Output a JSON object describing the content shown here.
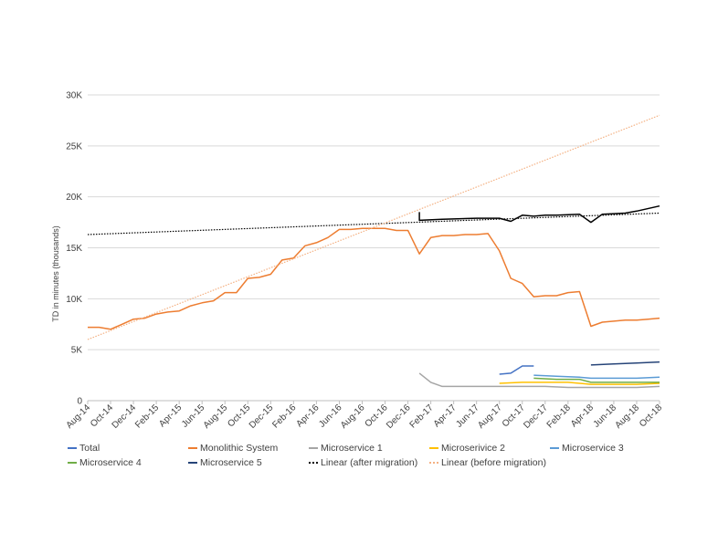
{
  "chart_data": {
    "type": "line",
    "title": "",
    "xlabel": "",
    "ylabel": "TD in minutes  (thousands)",
    "ylim": [
      0,
      30000
    ],
    "y_ticks": [
      {
        "value": 0,
        "label": "0"
      },
      {
        "value": 5000,
        "label": "5K"
      },
      {
        "value": 10000,
        "label": "10K"
      },
      {
        "value": 15000,
        "label": "15K"
      },
      {
        "value": 20000,
        "label": "20K"
      },
      {
        "value": 25000,
        "label": "25K"
      },
      {
        "value": 30000,
        "label": "30K"
      }
    ],
    "x_ticks": [
      "Aug-14",
      "Oct-14",
      "Dec-14",
      "Feb-15",
      "Apr-15",
      "Jun-15",
      "Aug-15",
      "Oct-15",
      "Dec-15",
      "Feb-16",
      "Apr-16",
      "Jun-16",
      "Aug-16",
      "Oct-16",
      "Dec-16",
      "Feb-17",
      "Apr-17",
      "Jun-17",
      "Aug-17",
      "Oct-17",
      "Dec-17",
      "Feb-18",
      "Apr-18",
      "Jun-18",
      "Aug-18",
      "Oct-18"
    ],
    "grid": "horizontal",
    "legend_position": "bottom",
    "series": [
      {
        "name": "Total",
        "color": "#4472c4",
        "dash": "solid",
        "points": [
          [
            "Aug-17",
            2600
          ],
          [
            "Sep-17",
            2700
          ],
          [
            "Oct-17",
            3400
          ],
          [
            "Nov-17",
            3400
          ]
        ]
      },
      {
        "name": "Monolithic System",
        "color": "#ed7d31",
        "dash": "solid",
        "points": [
          [
            "Aug-14",
            7200
          ],
          [
            "Sep-14",
            7200
          ],
          [
            "Oct-14",
            7000
          ],
          [
            "Nov-14",
            7500
          ],
          [
            "Dec-14",
            8000
          ],
          [
            "Jan-15",
            8100
          ],
          [
            "Feb-15",
            8500
          ],
          [
            "Mar-15",
            8700
          ],
          [
            "Apr-15",
            8800
          ],
          [
            "May-15",
            9300
          ],
          [
            "Jun-15",
            9600
          ],
          [
            "Jul-15",
            9800
          ],
          [
            "Aug-15",
            10600
          ],
          [
            "Sep-15",
            10600
          ],
          [
            "Oct-15",
            12000
          ],
          [
            "Nov-15",
            12100
          ],
          [
            "Dec-15",
            12400
          ],
          [
            "Jan-16",
            13800
          ],
          [
            "Feb-16",
            14000
          ],
          [
            "Mar-16",
            15200
          ],
          [
            "Apr-16",
            15500
          ],
          [
            "May-16",
            16000
          ],
          [
            "Jun-16",
            16800
          ],
          [
            "Jul-16",
            16800
          ],
          [
            "Aug-16",
            16900
          ],
          [
            "Sep-16",
            16900
          ],
          [
            "Oct-16",
            16900
          ],
          [
            "Nov-16",
            16700
          ],
          [
            "Dec-16",
            16700
          ],
          [
            "Jan-17",
            14400
          ],
          [
            "Feb-17",
            16000
          ],
          [
            "Mar-17",
            16200
          ],
          [
            "Apr-17",
            16200
          ],
          [
            "May-17",
            16300
          ],
          [
            "Jun-17",
            16300
          ],
          [
            "Jul-17",
            16400
          ],
          [
            "Aug-17",
            14700
          ],
          [
            "Sep-17",
            12000
          ],
          [
            "Oct-17",
            11500
          ],
          [
            "Nov-17",
            10200
          ],
          [
            "Dec-17",
            10300
          ],
          [
            "Jan-18",
            10300
          ],
          [
            "Feb-18",
            10600
          ],
          [
            "Mar-18",
            10700
          ],
          [
            "Apr-18",
            7300
          ],
          [
            "May-18",
            7700
          ],
          [
            "Jun-18",
            7800
          ],
          [
            "Jul-18",
            7900
          ],
          [
            "Aug-18",
            7900
          ],
          [
            "Sep-18",
            8000
          ],
          [
            "Oct-18",
            8100
          ]
        ]
      },
      {
        "name": "Microservice 1",
        "color": "#a5a5a5",
        "dash": "solid",
        "points": [
          [
            "Jan-17",
            2700
          ],
          [
            "Feb-17",
            1800
          ],
          [
            "Mar-17",
            1400
          ],
          [
            "Jun-17",
            1400
          ],
          [
            "Aug-17",
            1400
          ],
          [
            "Oct-17",
            1400
          ],
          [
            "Dec-17",
            1400
          ],
          [
            "Feb-18",
            1300
          ],
          [
            "Apr-18",
            1300
          ],
          [
            "Jun-18",
            1300
          ],
          [
            "Aug-18",
            1300
          ],
          [
            "Oct-18",
            1400
          ]
        ]
      },
      {
        "name": "Microserivice 2",
        "color": "#ffc000",
        "dash": "solid",
        "points": [
          [
            "Aug-17",
            1700
          ],
          [
            "Oct-17",
            1800
          ],
          [
            "Dec-17",
            1800
          ],
          [
            "Feb-18",
            1800
          ],
          [
            "Apr-18",
            1600
          ],
          [
            "Jun-18",
            1600
          ],
          [
            "Aug-18",
            1600
          ],
          [
            "Oct-18",
            1700
          ]
        ]
      },
      {
        "name": "Microservice 3",
        "color": "#5b9bd5",
        "dash": "solid",
        "points": [
          [
            "Nov-17",
            2500
          ],
          [
            "Jan-18",
            2400
          ],
          [
            "Mar-18",
            2300
          ],
          [
            "Apr-18",
            2200
          ],
          [
            "Jun-18",
            2200
          ],
          [
            "Aug-18",
            2200
          ],
          [
            "Oct-18",
            2300
          ]
        ]
      },
      {
        "name": "Microservice 4",
        "color": "#70ad47",
        "dash": "solid",
        "points": [
          [
            "Nov-17",
            2200
          ],
          [
            "Jan-18",
            2100
          ],
          [
            "Mar-18",
            2100
          ],
          [
            "Apr-18",
            1800
          ],
          [
            "Jun-18",
            1800
          ],
          [
            "Aug-18",
            1800
          ],
          [
            "Oct-18",
            1800
          ]
        ]
      },
      {
        "name": "Microservice 5",
        "color": "#264478",
        "dash": "solid",
        "points": [
          [
            "Apr-18",
            3500
          ],
          [
            "Jun-18",
            3600
          ],
          [
            "Aug-18",
            3700
          ],
          [
            "Oct-18",
            3800
          ]
        ]
      },
      {
        "name": "Total",
        "color": "#000000",
        "dash": "solid",
        "legend": false,
        "points": [
          [
            "Jan-17",
            18500
          ],
          [
            "Jan-17",
            17700
          ],
          [
            "Mar-17",
            17800
          ],
          [
            "Jun-17",
            17900
          ],
          [
            "Aug-17",
            17900
          ],
          [
            "Sep-17",
            17600
          ],
          [
            "Oct-17",
            18200
          ],
          [
            "Nov-17",
            18100
          ],
          [
            "Dec-17",
            18200
          ],
          [
            "Jan-18",
            18200
          ],
          [
            "Mar-18",
            18300
          ],
          [
            "Apr-18",
            17500
          ],
          [
            "May-18",
            18300
          ],
          [
            "Jul-18",
            18400
          ],
          [
            "Aug-18",
            18600
          ],
          [
            "Oct-18",
            19100
          ]
        ]
      },
      {
        "name": "Linear (after migration)",
        "color": "#000000",
        "dash": "dotted",
        "points": [
          [
            "Aug-14",
            16300
          ],
          [
            "Oct-18",
            18400
          ]
        ]
      },
      {
        "name": "Linear (before migration)",
        "color": "#f4b183",
        "dash": "dotted",
        "points": [
          [
            "Aug-14",
            6000
          ],
          [
            "Oct-18",
            28000
          ]
        ]
      }
    ]
  }
}
